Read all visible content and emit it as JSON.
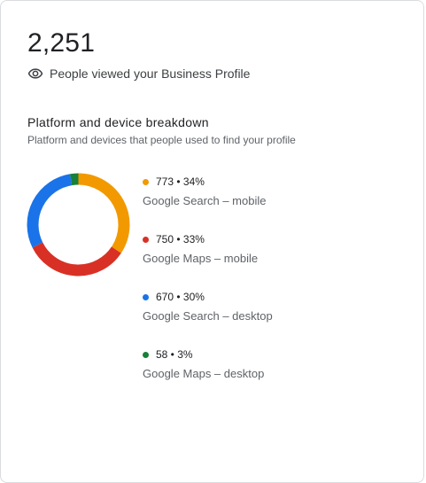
{
  "summary": {
    "total": "2,251",
    "viewed_label": "People viewed your Business Profile"
  },
  "breakdown": {
    "title": "Platform and device breakdown",
    "subtitle": "Platform and devices that people used to find your profile"
  },
  "chart_data": {
    "type": "pie",
    "variant": "donut",
    "categories": [
      "Google Search – mobile",
      "Google Maps – mobile",
      "Google Search – desktop",
      "Google Maps – desktop"
    ],
    "values": [
      773,
      750,
      670,
      58
    ],
    "percent_labels": [
      "34%",
      "33%",
      "30%",
      "3%"
    ],
    "value_labels": [
      "773 • 34%",
      "750 • 33%",
      "670 • 30%",
      "58 • 3%"
    ],
    "colors": [
      "#f29900",
      "#d93025",
      "#1a73e8",
      "#188038"
    ],
    "legend_position": "right"
  },
  "icons": {
    "viewed": "eye-icon"
  }
}
